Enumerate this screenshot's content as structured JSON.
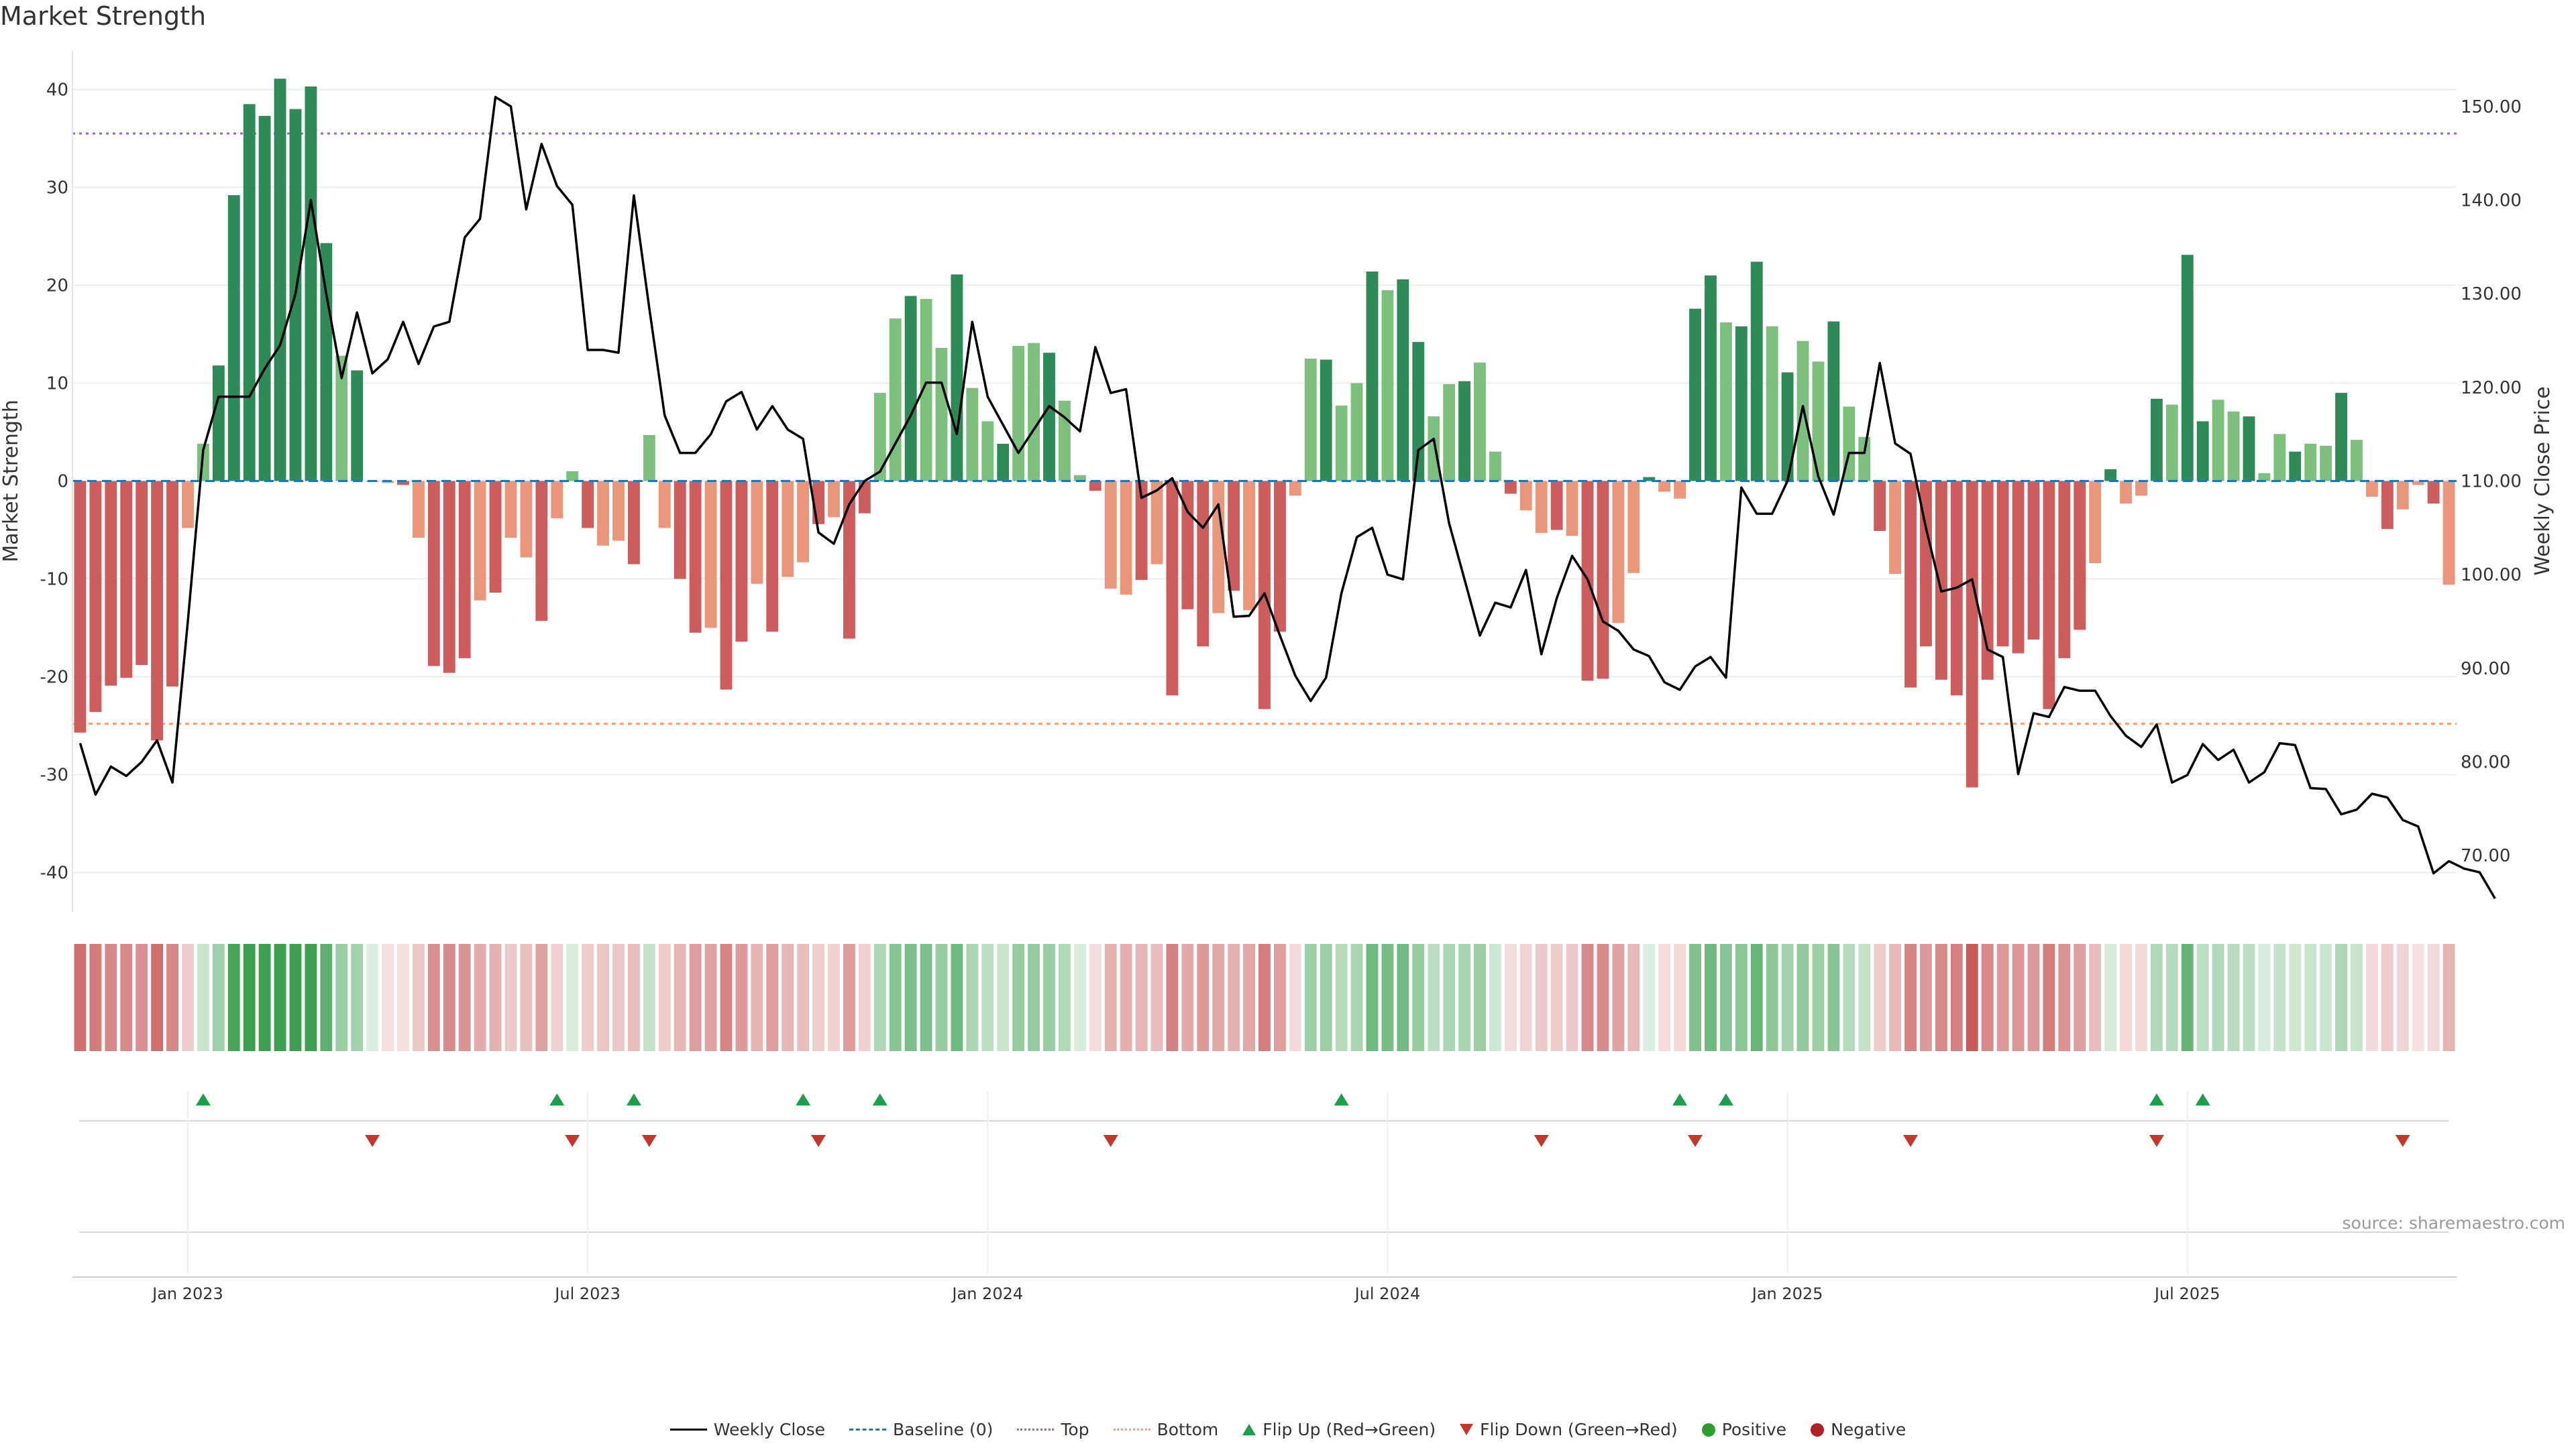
{
  "title": "Market Strength",
  "source": "source: sharemaestro.com",
  "colors": {
    "strong_pos": "#2e8b57",
    "weak_pos": "#7dbf7d",
    "strong_neg": "#cd5c5c",
    "weak_neg": "#e9967a",
    "line": "#000000",
    "top_line": "#9467bd",
    "bottom_line": "#ff9e6b",
    "baseline": "#1f77b4",
    "flip_up": "#1f9e4a",
    "flip_down": "#c0392b",
    "positive": "#2ca02c",
    "negative": "#b22222"
  },
  "legend": [
    {
      "label": "Weekly Close",
      "icon": "line"
    },
    {
      "label": "Baseline (0)",
      "icon": "dash"
    },
    {
      "label": "Top",
      "icon": "dot"
    },
    {
      "label": "Bottom",
      "icon": "dot2"
    },
    {
      "label": "Flip Up (Red→Green)",
      "icon": "tri-up"
    },
    {
      "label": "Flip Down (Green→Red)",
      "icon": "tri-dn"
    },
    {
      "label": "Positive",
      "icon": "circle-pos"
    },
    {
      "label": "Negative",
      "icon": "circle-neg"
    }
  ],
  "chart_data": {
    "type": "bar+line",
    "title": "Market Strength",
    "ylabel": "Market Strength",
    "y2label": "Weekly Close Price",
    "ylim": [
      -44,
      44
    ],
    "y2lim": [
      64,
      156
    ],
    "y_ticks": [
      40,
      30,
      20,
      10,
      0,
      -10,
      -20,
      -30,
      -40
    ],
    "y2_ticks": [
      "150.00",
      "140.00",
      "130.00",
      "120.00",
      "110.00",
      "100.00",
      "90.00",
      "80.00",
      "70.00"
    ],
    "x_ticks": [
      {
        "label": "Jan 2023",
        "week": 7
      },
      {
        "label": "Jul 2023",
        "week": 33
      },
      {
        "label": "Jan 2024",
        "week": 59
      },
      {
        "label": "Jul 2024",
        "week": 85
      },
      {
        "label": "Jan 2025",
        "week": 111
      },
      {
        "label": "Jul 2025",
        "week": 137
      }
    ],
    "top_threshold": 35.5,
    "bottom_threshold": -24.8,
    "strength": [
      -25.7,
      -23.6,
      -20.9,
      -20.1,
      -18.8,
      -26.5,
      -21,
      -4.8,
      3.8,
      11.8,
      29.2,
      38.5,
      37.3,
      41.1,
      38,
      40.3,
      24.3,
      12.8,
      11.3,
      0,
      -0.2,
      -0.4,
      -5.8,
      -18.9,
      -19.6,
      -18.1,
      -12.2,
      -11.4,
      -5.8,
      -7.8,
      -14.3,
      -3.8,
      1,
      -4.8,
      -6.6,
      -6.1,
      -8.5,
      4.7,
      -4.8,
      -10,
      -15.5,
      -15,
      -21.3,
      -16.4,
      -10.5,
      -15.4,
      -9.8,
      -8.3,
      -4.4,
      -3.7,
      -16.1,
      -3.3,
      9,
      16.6,
      18.9,
      18.6,
      13.6,
      21.1,
      9.5,
      6.1,
      3.8,
      13.8,
      14.1,
      13.1,
      8.2,
      0.6,
      -1,
      -11,
      -11.6,
      -10.1,
      -8.5,
      -21.9,
      -13.1,
      -16.9,
      -13.5,
      -11.2,
      -13.2,
      -23.3,
      -15.4,
      -1.5,
      12.5,
      12.4,
      7.7,
      10,
      21.4,
      19.5,
      20.6,
      14.2,
      6.6,
      9.9,
      10.2,
      12.1,
      3,
      -1.3,
      -3,
      -5.3,
      -5,
      -5.6,
      -20.4,
      -20.2,
      -14.5,
      -9.4,
      0.4,
      -1.1,
      -1.8,
      17.6,
      21,
      16.2,
      15.8,
      22.4,
      15.8,
      11.1,
      14.3,
      12.2,
      16.3,
      7.6,
      4.5,
      -5.1,
      -9.5,
      -21.1,
      -16.9,
      -20.3,
      -21.9,
      -31.3,
      -20.3,
      -16.9,
      -17.6,
      -16.2,
      -23.3,
      -18.1,
      -15.2,
      -8.4,
      1.2,
      -2.3,
      -1.5,
      8.4,
      7.8,
      23.1,
      6.1,
      8.3,
      7.1,
      6.6,
      0.8,
      4.8,
      3,
      3.8,
      3.6,
      9,
      4.2,
      -1.6,
      -4.9,
      -2.9,
      -0.4,
      -2.3,
      -10.6
    ],
    "close": [
      82,
      76.5,
      79.5,
      78.5,
      80,
      82.3,
      77.8,
      95,
      113.3,
      119,
      119,
      119,
      122,
      124.5,
      130,
      140,
      130,
      121,
      128,
      121.5,
      123,
      127,
      122.5,
      126.5,
      127,
      136,
      138,
      151,
      150,
      139,
      146,
      141.5,
      139.5,
      124,
      124,
      123.7,
      140.5,
      128.5,
      117,
      113,
      113,
      115,
      118.5,
      119.5,
      115.5,
      118,
      115.5,
      114.5,
      104.5,
      103.3,
      107.5,
      110,
      111,
      114,
      117,
      120.5,
      120.5,
      115,
      127,
      119,
      116,
      113,
      115.5,
      118,
      116.8,
      115.3,
      124.3,
      119.4,
      119.8,
      108.2,
      109,
      110.3,
      106.7,
      105,
      107.5,
      95.5,
      95.6,
      98,
      93.5,
      89.2,
      86.5,
      89,
      98,
      104,
      105,
      100,
      99.5,
      113.3,
      114.5,
      105.5,
      99.5,
      93.5,
      97,
      96.5,
      100.5,
      91.5,
      97.5,
      102,
      99.5,
      95,
      94,
      92,
      91.3,
      88.5,
      87.7,
      90.2,
      91.2,
      89,
      109.3,
      106.5,
      106.5,
      110,
      118,
      110.5,
      106.4,
      113,
      113,
      122.6,
      114,
      112.9,
      105,
      98.2,
      98.6,
      99.5,
      92,
      91.2,
      78.7,
      85.2,
      84.8,
      88,
      87.6,
      87.6,
      84.9,
      82.8,
      81.6,
      84,
      77.8,
      78.6,
      81.9,
      80.2,
      81.3,
      77.8,
      78.9,
      82,
      81.8,
      77.2,
      77.1,
      74.4,
      74.9,
      76.6,
      76.2,
      73.8,
      73.1,
      68.1,
      69.4,
      68.6,
      68.2,
      65.4
    ],
    "flip_up_weeks": [
      8,
      31,
      36,
      47,
      52,
      82,
      104,
      107,
      135,
      138
    ],
    "flip_down_weeks": [
      19,
      32,
      37,
      48,
      67,
      95,
      105,
      119,
      135,
      151
    ]
  }
}
